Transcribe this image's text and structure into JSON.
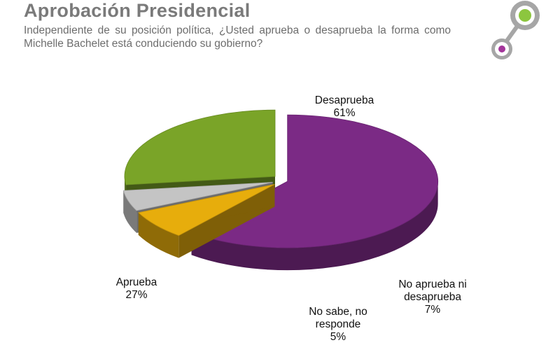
{
  "header": {
    "title": "Aprobación Presidencial",
    "subtitle": "Independiente de su posición política, ¿Usted aprueba o desaprueba la forma como Michelle Bachelet está conduciendo su gobierno?"
  },
  "colors": {
    "desaprueba": "#7b2a85",
    "aprueba": "#7aa428",
    "no_aprueba_ni_desaprueba": "#e7ad0c",
    "no_sabe": "#c4c4c4",
    "logo_green": "#8cc63f",
    "logo_purple": "#a3359a",
    "logo_ring": "#a6a6a6"
  },
  "chart_data": {
    "type": "pie",
    "style": "3d-exploded",
    "slices": [
      {
        "label": "Desaprueba",
        "value": 61,
        "value_label": "61%"
      },
      {
        "label": "No aprueba ni desaprueba",
        "label_lines": [
          "No aprueba ni",
          "desaprueba"
        ],
        "value": 7,
        "value_label": "7%"
      },
      {
        "label": "No sabe, no responde",
        "label_lines": [
          "No sabe, no",
          "responde"
        ],
        "value": 5,
        "value_label": "5%"
      },
      {
        "label": "Aprueba",
        "value": 27,
        "value_label": "27%"
      }
    ]
  }
}
